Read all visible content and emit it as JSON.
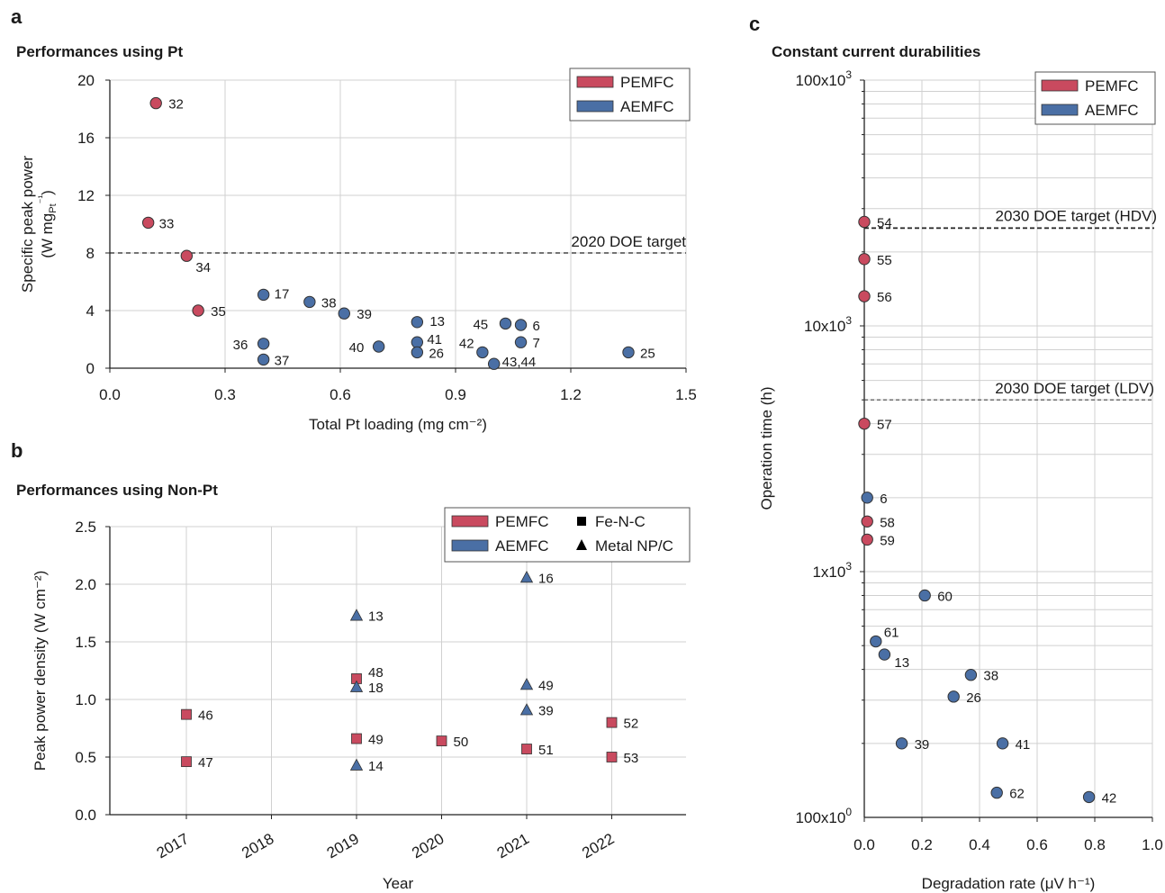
{
  "colors": {
    "pemfc": "#c94a5f",
    "aemfc": "#4a6fa5",
    "grid": "#d0d0d0",
    "axis": "#222222"
  },
  "chart_data": [
    {
      "panel": "a",
      "type": "scatter",
      "title": "Performances using Pt",
      "xlabel": "Total Pt loading (mg cm⁻²)",
      "ylabel_line1": "Specific peak power",
      "ylabel_line2": "(W mg",
      "ylabel_sub": "Pt",
      "ylabel_sup": "⁻¹",
      "ylabel_close": ")",
      "xlim": [
        0,
        1.5
      ],
      "ylim": [
        0,
        20
      ],
      "x_ticks": [
        "0.0",
        "0.3",
        "0.6",
        "0.9",
        "1.2",
        "1.5"
      ],
      "y_ticks": [
        "0",
        "4",
        "8",
        "12",
        "16",
        "20"
      ],
      "target": {
        "y": 8,
        "label": "2020 DOE target"
      },
      "legend": [
        "PEMFC",
        "AEMFC"
      ],
      "series": [
        {
          "name": "PEMFC",
          "points": [
            {
              "x": 0.12,
              "y": 18.4,
              "label": "32"
            },
            {
              "x": 0.1,
              "y": 10.1,
              "label": "33"
            },
            {
              "x": 0.2,
              "y": 7.8,
              "label": "34"
            },
            {
              "x": 0.23,
              "y": 4.0,
              "label": "35"
            }
          ]
        },
        {
          "name": "AEMFC",
          "points": [
            {
              "x": 0.4,
              "y": 5.1,
              "label": "17"
            },
            {
              "x": 0.52,
              "y": 4.6,
              "label": "38"
            },
            {
              "x": 0.61,
              "y": 3.8,
              "label": "39"
            },
            {
              "x": 0.8,
              "y": 3.2,
              "label": "13"
            },
            {
              "x": 1.03,
              "y": 3.1,
              "label": "45"
            },
            {
              "x": 1.07,
              "y": 3.0,
              "label": "6"
            },
            {
              "x": 0.4,
              "y": 1.7,
              "label": "36"
            },
            {
              "x": 0.4,
              "y": 0.6,
              "label": "37"
            },
            {
              "x": 0.7,
              "y": 1.5,
              "label": "40"
            },
            {
              "x": 0.8,
              "y": 1.8,
              "label": "41"
            },
            {
              "x": 0.8,
              "y": 1.1,
              "label": "26"
            },
            {
              "x": 0.97,
              "y": 1.1,
              "label": "42"
            },
            {
              "x": 1.07,
              "y": 1.8,
              "label": "7"
            },
            {
              "x": 1.0,
              "y": 0.3,
              "label": "43,44"
            },
            {
              "x": 1.35,
              "y": 1.1,
              "label": "25"
            }
          ]
        }
      ]
    },
    {
      "panel": "b",
      "type": "scatter",
      "title": "Performances using Non-Pt",
      "xlabel": "Year",
      "ylabel": "Peak power density (W cm⁻²)",
      "ylim": [
        0,
        2.5
      ],
      "categories": [
        "2017",
        "2018",
        "2019",
        "2020",
        "2021",
        "2022"
      ],
      "y_ticks": [
        "0.0",
        "0.5",
        "1.0",
        "1.5",
        "2.0",
        "2.5"
      ],
      "legend": [
        "PEMFC",
        "AEMFC",
        "Fe-N-C",
        "Metal NP/C"
      ],
      "points": [
        {
          "year": "2017",
          "y": 0.87,
          "label": "46",
          "fuel": "PEMFC",
          "catalyst": "Fe-N-C"
        },
        {
          "year": "2017",
          "y": 0.46,
          "label": "47",
          "fuel": "PEMFC",
          "catalyst": "Fe-N-C"
        },
        {
          "year": "2019",
          "y": 1.73,
          "label": "13",
          "fuel": "AEMFC",
          "catalyst": "Metal NP/C"
        },
        {
          "year": "2019",
          "y": 1.18,
          "label": "48",
          "fuel": "PEMFC",
          "catalyst": "Fe-N-C"
        },
        {
          "year": "2019",
          "y": 1.11,
          "label": "18",
          "fuel": "AEMFC",
          "catalyst": "Metal NP/C"
        },
        {
          "year": "2019",
          "y": 0.66,
          "label": "49",
          "fuel": "PEMFC",
          "catalyst": "Fe-N-C"
        },
        {
          "year": "2019",
          "y": 0.43,
          "label": "14",
          "fuel": "AEMFC",
          "catalyst": "Metal NP/C"
        },
        {
          "year": "2020",
          "y": 0.64,
          "label": "50",
          "fuel": "PEMFC",
          "catalyst": "Fe-N-C"
        },
        {
          "year": "2021",
          "y": 2.06,
          "label": "16",
          "fuel": "AEMFC",
          "catalyst": "Metal NP/C"
        },
        {
          "year": "2021",
          "y": 1.13,
          "label": "49",
          "fuel": "AEMFC",
          "catalyst": "Metal NP/C"
        },
        {
          "year": "2021",
          "y": 0.91,
          "label": "39",
          "fuel": "AEMFC",
          "catalyst": "Metal NP/C"
        },
        {
          "year": "2021",
          "y": 0.57,
          "label": "51",
          "fuel": "PEMFC",
          "catalyst": "Fe-N-C"
        },
        {
          "year": "2022",
          "y": 0.8,
          "label": "52",
          "fuel": "PEMFC",
          "catalyst": "Fe-N-C"
        },
        {
          "year": "2022",
          "y": 0.5,
          "label": "53",
          "fuel": "PEMFC",
          "catalyst": "Fe-N-C"
        }
      ]
    },
    {
      "panel": "c",
      "type": "scatter",
      "title": "Constant current durabilities",
      "xlabel": "Degradation rate (μV h⁻¹)",
      "ylabel": "Operation time (h)",
      "log_y": true,
      "xlim": [
        0,
        1.0
      ],
      "ylim": [
        100,
        100000
      ],
      "x_ticks": [
        "0.0",
        "0.2",
        "0.4",
        "0.6",
        "0.8",
        "1.0"
      ],
      "y_ticks": [
        {
          "base": "100x10",
          "exp": "0",
          "value": 100
        },
        {
          "base": "1x10",
          "exp": "3",
          "value": 1000
        },
        {
          "base": "10x10",
          "exp": "3",
          "value": 10000
        },
        {
          "base": "100x10",
          "exp": "3",
          "value": 100000
        }
      ],
      "targets": [
        {
          "y": 25000,
          "label": "2030 DOE target (HDV)",
          "style": "dashed-bold"
        },
        {
          "y": 5000,
          "label": "2030 DOE target (LDV)",
          "style": "dashed"
        }
      ],
      "legend": [
        "PEMFC",
        "AEMFC"
      ],
      "series": [
        {
          "name": "PEMFC",
          "points": [
            {
              "x": 0.0,
              "y": 26500,
              "label": "54"
            },
            {
              "x": 0.0,
              "y": 18700,
              "label": "55"
            },
            {
              "x": 0.0,
              "y": 13200,
              "label": "56"
            },
            {
              "x": 0.0,
              "y": 4000,
              "label": "57"
            },
            {
              "x": 0.01,
              "y": 1600,
              "label": "58"
            },
            {
              "x": 0.01,
              "y": 1350,
              "label": "59"
            }
          ]
        },
        {
          "name": "AEMFC",
          "points": [
            {
              "x": 0.01,
              "y": 2000,
              "label": "6"
            },
            {
              "x": 0.21,
              "y": 800,
              "label": "60"
            },
            {
              "x": 0.04,
              "y": 520,
              "label": "61"
            },
            {
              "x": 0.07,
              "y": 460,
              "label": "13"
            },
            {
              "x": 0.37,
              "y": 380,
              "label": "38"
            },
            {
              "x": 0.31,
              "y": 310,
              "label": "26"
            },
            {
              "x": 0.13,
              "y": 200,
              "label": "39"
            },
            {
              "x": 0.48,
              "y": 200,
              "label": "41"
            },
            {
              "x": 0.46,
              "y": 126,
              "label": "62"
            },
            {
              "x": 0.78,
              "y": 121,
              "label": "42"
            }
          ]
        }
      ]
    }
  ]
}
